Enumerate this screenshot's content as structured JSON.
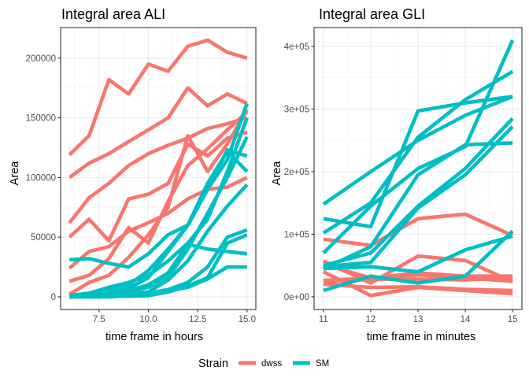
{
  "chart_data": [
    {
      "type": "line",
      "title": "Integral area ALI",
      "xlabel": "time frame in hours",
      "ylabel": "Area",
      "xlim": [
        6,
        15
      ],
      "ylim": [
        0,
        215000
      ],
      "x_ticks": [
        7.5,
        10.0,
        12.5,
        15.0
      ],
      "x_tick_labels": [
        "7.5",
        "10.0",
        "12.5",
        "15.0"
      ],
      "y_ticks": [
        0,
        50000,
        100000,
        150000,
        200000
      ],
      "y_tick_labels": [
        "0",
        "50000",
        "100000",
        "150000",
        "200000"
      ],
      "grid": true,
      "series": [
        {
          "strain": "dwss",
          "x": [
            6,
            7,
            8,
            9,
            10,
            11,
            12,
            13,
            14,
            15
          ],
          "y": [
            119000,
            135000,
            182000,
            170000,
            195000,
            189000,
            210000,
            215000,
            205000,
            200000
          ]
        },
        {
          "strain": "dwss",
          "x": [
            6,
            7,
            8,
            9,
            10,
            11,
            12,
            13,
            14,
            15
          ],
          "y": [
            100000,
            112000,
            120000,
            130000,
            140000,
            150000,
            175000,
            160000,
            170000,
            162000
          ]
        },
        {
          "strain": "dwss",
          "x": [
            6,
            7,
            8,
            9,
            10,
            11,
            12,
            13,
            14,
            15
          ],
          "y": [
            62000,
            83000,
            95000,
            110000,
            120000,
            127000,
            133000,
            141000,
            145000,
            150000
          ]
        },
        {
          "strain": "dwss",
          "x": [
            6,
            7,
            8,
            9,
            10,
            11,
            12,
            13,
            14,
            15
          ],
          "y": [
            50000,
            65000,
            47000,
            82000,
            86000,
            95000,
            128000,
            118000,
            133000,
            138000
          ]
        },
        {
          "strain": "dwss",
          "x": [
            6,
            7,
            8,
            9,
            10,
            11,
            12,
            13,
            14,
            15
          ],
          "y": [
            24000,
            38000,
            42000,
            55000,
            62000,
            70000,
            82000,
            90000,
            92000,
            100000
          ]
        },
        {
          "strain": "dwss",
          "x": [
            6,
            7,
            8,
            9,
            10,
            11,
            12,
            13,
            14,
            15
          ],
          "y": [
            13000,
            18000,
            32000,
            58000,
            45000,
            80000,
            110000,
            124000,
            140000,
            155000
          ]
        },
        {
          "strain": "dwss",
          "x": [
            6,
            7,
            8,
            9,
            10,
            11,
            12,
            13,
            14,
            15
          ],
          "y": [
            2000,
            12000,
            18000,
            33000,
            52000,
            75000,
            135000,
            105000,
            128000,
            157000
          ]
        },
        {
          "strain": "SM",
          "x": [
            6,
            7,
            8,
            9,
            10,
            11,
            12,
            13,
            14,
            15
          ],
          "y": [
            31000,
            32000,
            28000,
            25000,
            36000,
            52000,
            60000,
            90000,
            115000,
            162000
          ]
        },
        {
          "strain": "SM",
          "x": [
            6,
            7,
            8,
            9,
            10,
            11,
            12,
            13,
            14,
            15
          ],
          "y": [
            1000,
            3000,
            8000,
            12000,
            18000,
            30000,
            45000,
            65000,
            105000,
            150000
          ]
        },
        {
          "strain": "SM",
          "x": [
            6,
            7,
            8,
            9,
            10,
            11,
            12,
            13,
            14,
            15
          ],
          "y": [
            0,
            2000,
            5000,
            10000,
            22000,
            40000,
            60000,
            90000,
            123000,
            118000
          ]
        },
        {
          "strain": "SM",
          "x": [
            6,
            7,
            8,
            9,
            10,
            11,
            12,
            13,
            14,
            15
          ],
          "y": [
            0,
            1000,
            3000,
            7000,
            16000,
            38000,
            60000,
            95000,
            122000,
            105000
          ]
        },
        {
          "strain": "SM",
          "x": [
            6,
            7,
            8,
            9,
            10,
            11,
            12,
            13,
            14,
            15
          ],
          "y": [
            1000,
            2000,
            3000,
            5000,
            8000,
            16000,
            40000,
            70000,
            100000,
            134000
          ]
        },
        {
          "strain": "SM",
          "x": [
            6,
            7,
            8,
            9,
            10,
            11,
            12,
            13,
            14,
            15
          ],
          "y": [
            0,
            1000,
            2000,
            3000,
            4000,
            14000,
            30000,
            55000,
            76000,
            94000
          ]
        },
        {
          "strain": "SM",
          "x": [
            6,
            7,
            8,
            9,
            10,
            11,
            12,
            13,
            14,
            15
          ],
          "y": [
            0,
            500,
            1500,
            2500,
            3000,
            6000,
            12000,
            25000,
            50000,
            56000
          ]
        },
        {
          "strain": "SM",
          "x": [
            6,
            7,
            8,
            9,
            10,
            11,
            12,
            13,
            14,
            15
          ],
          "y": [
            0,
            0,
            0,
            1000,
            1000,
            4000,
            9000,
            16000,
            45000,
            52000
          ]
        },
        {
          "strain": "SM",
          "x": [
            6,
            7,
            8,
            9,
            10,
            11,
            12,
            13,
            14,
            15
          ],
          "y": [
            0,
            500,
            1000,
            500,
            1000,
            5000,
            8000,
            15000,
            25000,
            25000
          ]
        },
        {
          "strain": "SM",
          "x": [
            6,
            7,
            8,
            9,
            10,
            11,
            12,
            13,
            14,
            15
          ],
          "y": [
            0,
            2000,
            3000,
            5000,
            10000,
            20000,
            44000,
            40000,
            38000,
            36000
          ]
        }
      ]
    },
    {
      "type": "line",
      "title": "Integral area GLI",
      "xlabel": "time frame in minutes",
      "ylabel": "Area",
      "xlim": [
        11,
        15
      ],
      "ylim": [
        0,
        410000
      ],
      "x_ticks": [
        11,
        12,
        13,
        14,
        15
      ],
      "x_tick_labels": [
        "11",
        "12",
        "13",
        "14",
        "15"
      ],
      "y_ticks": [
        0,
        100000,
        200000,
        300000,
        400000
      ],
      "y_tick_labels": [
        "0e+00",
        "1e+05",
        "2e+05",
        "3e+05",
        "4e+05"
      ],
      "grid": true,
      "series": [
        {
          "strain": "dwss",
          "x": [
            11,
            12,
            13,
            14,
            15
          ],
          "y": [
            92000,
            82000,
            125000,
            132000,
            98000
          ]
        },
        {
          "strain": "dwss",
          "x": [
            11,
            12,
            13,
            14,
            15
          ],
          "y": [
            57000,
            22000,
            65000,
            58000,
            24000
          ]
        },
        {
          "strain": "dwss",
          "x": [
            11,
            12,
            13,
            14,
            15
          ],
          "y": [
            52000,
            30000,
            38000,
            33000,
            33000
          ]
        },
        {
          "strain": "dwss",
          "x": [
            11,
            12,
            13,
            14,
            15
          ],
          "y": [
            26000,
            30000,
            35000,
            30000,
            25000
          ]
        },
        {
          "strain": "dwss",
          "x": [
            11,
            12,
            13,
            14,
            15
          ],
          "y": [
            23000,
            28000,
            28000,
            27000,
            30000
          ]
        },
        {
          "strain": "dwss",
          "x": [
            11,
            12,
            13,
            14,
            15
          ],
          "y": [
            40000,
            2000,
            15000,
            10000,
            5000
          ]
        },
        {
          "strain": "dwss",
          "x": [
            11,
            12,
            13,
            14,
            15
          ],
          "y": [
            20000,
            15000,
            16000,
            12000,
            10000
          ]
        },
        {
          "strain": "SM",
          "x": [
            11,
            12,
            13,
            14,
            15
          ],
          "y": [
            148000,
            200000,
            250000,
            290000,
            320000
          ]
        },
        {
          "strain": "SM",
          "x": [
            11,
            12,
            13,
            14,
            15
          ],
          "y": [
            125000,
            112000,
            297000,
            310000,
            320000
          ]
        },
        {
          "strain": "SM",
          "x": [
            11,
            12,
            13,
            14,
            15
          ],
          "y": [
            102000,
            150000,
            255000,
            315000,
            360000
          ]
        },
        {
          "strain": "SM",
          "x": [
            11,
            12,
            13,
            14,
            15
          ],
          "y": [
            70000,
            145000,
            205000,
            240000,
            410000
          ]
        },
        {
          "strain": "SM",
          "x": [
            11,
            12,
            13,
            14,
            15
          ],
          "y": [
            50000,
            70000,
            145000,
            205000,
            285000
          ]
        },
        {
          "strain": "SM",
          "x": [
            11,
            12,
            13,
            14,
            15
          ],
          "y": [
            45000,
            80000,
            195000,
            243000,
            246000
          ]
        },
        {
          "strain": "SM",
          "x": [
            11,
            12,
            13,
            14,
            15
          ],
          "y": [
            48000,
            55000,
            142000,
            195000,
            272000
          ]
        },
        {
          "strain": "SM",
          "x": [
            11,
            12,
            13,
            14,
            15
          ],
          "y": [
            45000,
            48000,
            40000,
            75000,
            97000
          ]
        },
        {
          "strain": "SM",
          "x": [
            11,
            12,
            13,
            14,
            15
          ],
          "y": [
            10000,
            33000,
            22000,
            33000,
            105000
          ]
        }
      ]
    }
  ],
  "legend": {
    "title": "Strain",
    "position": "bottom",
    "entries": [
      {
        "label": "dwss",
        "color": "#F8766D"
      },
      {
        "label": "SM",
        "color": "#00BFC4"
      }
    ]
  },
  "colors": {
    "dwss": "#F8766D",
    "SM": "#00BFC4",
    "panel_background": "#FFFFFF",
    "grid": "#EBEBEB",
    "border": "#333333"
  }
}
